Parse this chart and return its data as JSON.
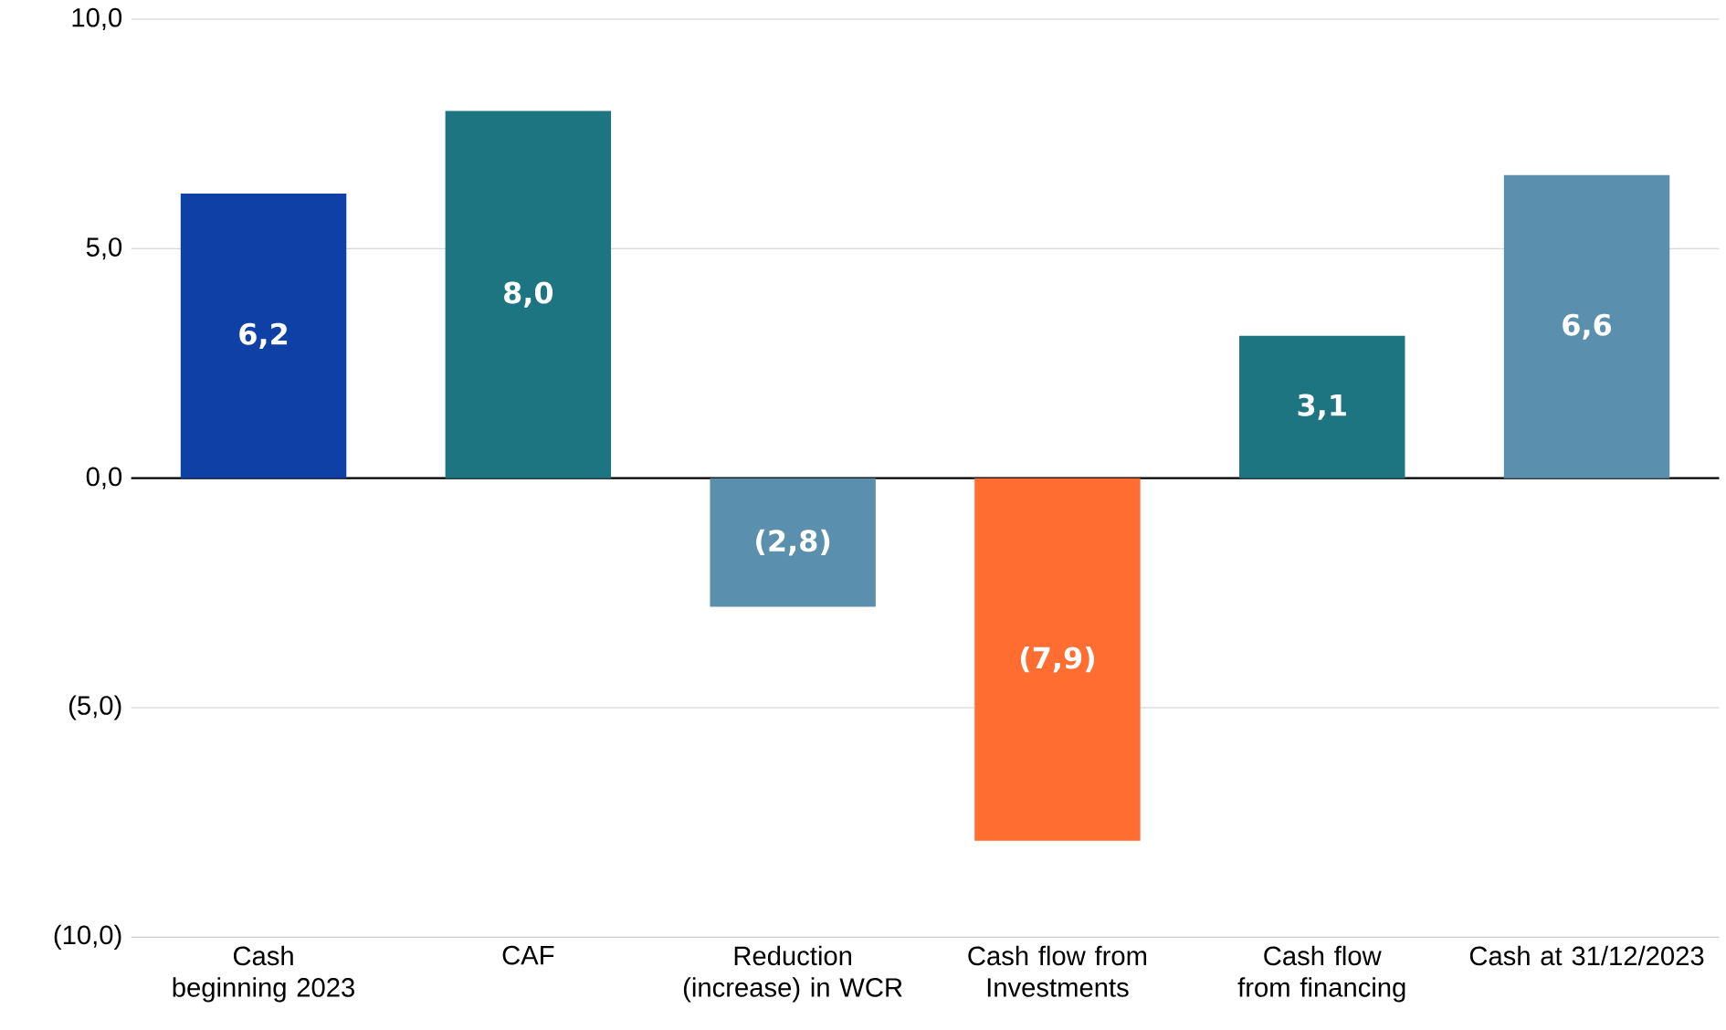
{
  "chart_data": {
    "type": "bar",
    "categories": [
      "Cash beginning 2023",
      "CAF",
      "Reduction (increase) in WCR",
      "Cash flow from Investments",
      "Cash flow from financing",
      "Cash at 31/12/2023"
    ],
    "values": [
      6.2,
      8.0,
      -2.8,
      -7.9,
      3.1,
      6.6
    ],
    "value_labels": [
      "6,2",
      "8,0",
      "(2,8)",
      "(7,9)",
      "3,1",
      "6,6"
    ],
    "colors": [
      "#0f40a6",
      "#1e7582",
      "#5a90ae",
      "#ff6d30",
      "#1e7582",
      "#5a90ae"
    ],
    "ylim": [
      -10,
      10
    ],
    "yticks": [
      {
        "value": -10,
        "label": "(10,0)"
      },
      {
        "value": -5,
        "label": "(5,0)"
      },
      {
        "value": 0,
        "label": "0,0"
      },
      {
        "value": 5,
        "label": "5,0"
      },
      {
        "value": 10,
        "label": "10,0"
      }
    ],
    "grid": "y"
  }
}
